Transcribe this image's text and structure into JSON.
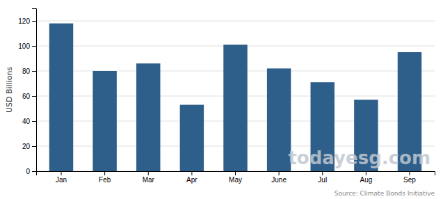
{
  "chart_data": {
    "type": "bar",
    "categories": [
      "Jan",
      "Feb",
      "Mar",
      "Apr",
      "May",
      "June",
      "Jul",
      "Aug",
      "Sep"
    ],
    "values": [
      118,
      80,
      86,
      53,
      101,
      82,
      71,
      57,
      95
    ],
    "color": "#2E5F8A",
    "ylabel": "USD Billions",
    "ylim": [
      0,
      130
    ],
    "yticks": [
      0,
      20,
      40,
      60,
      80,
      100,
      120
    ],
    "grid": true,
    "annotations": [
      "todayesg.com",
      "Source: Climate Bonds Initiative"
    ]
  }
}
